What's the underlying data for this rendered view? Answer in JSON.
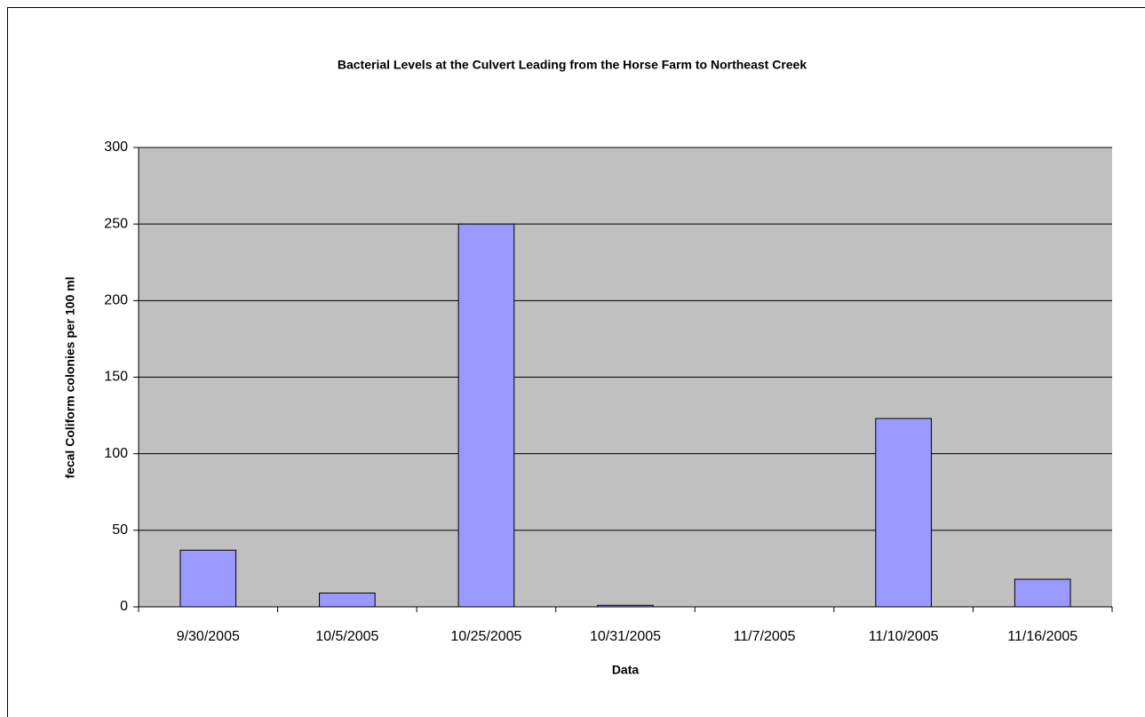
{
  "chart_data": {
    "type": "bar",
    "title": "Bacterial Levels at the Culvert Leading from the Horse Farm to Northeast Creek",
    "x_label": "Data",
    "y_label": "fecal Coliform colonies per 100 ml",
    "categories": [
      "9/30/2005",
      "10/5/2005",
      "10/25/2005",
      "10/31/2005",
      "11/7/2005",
      "11/10/2005",
      "11/16/2005"
    ],
    "values": [
      37,
      9,
      250,
      1,
      0,
      123,
      18
    ],
    "color": "#9999ff",
    "ylim": [
      0,
      300
    ],
    "yticks": [
      0,
      50,
      100,
      150,
      200,
      250,
      300
    ],
    "grid": true
  }
}
